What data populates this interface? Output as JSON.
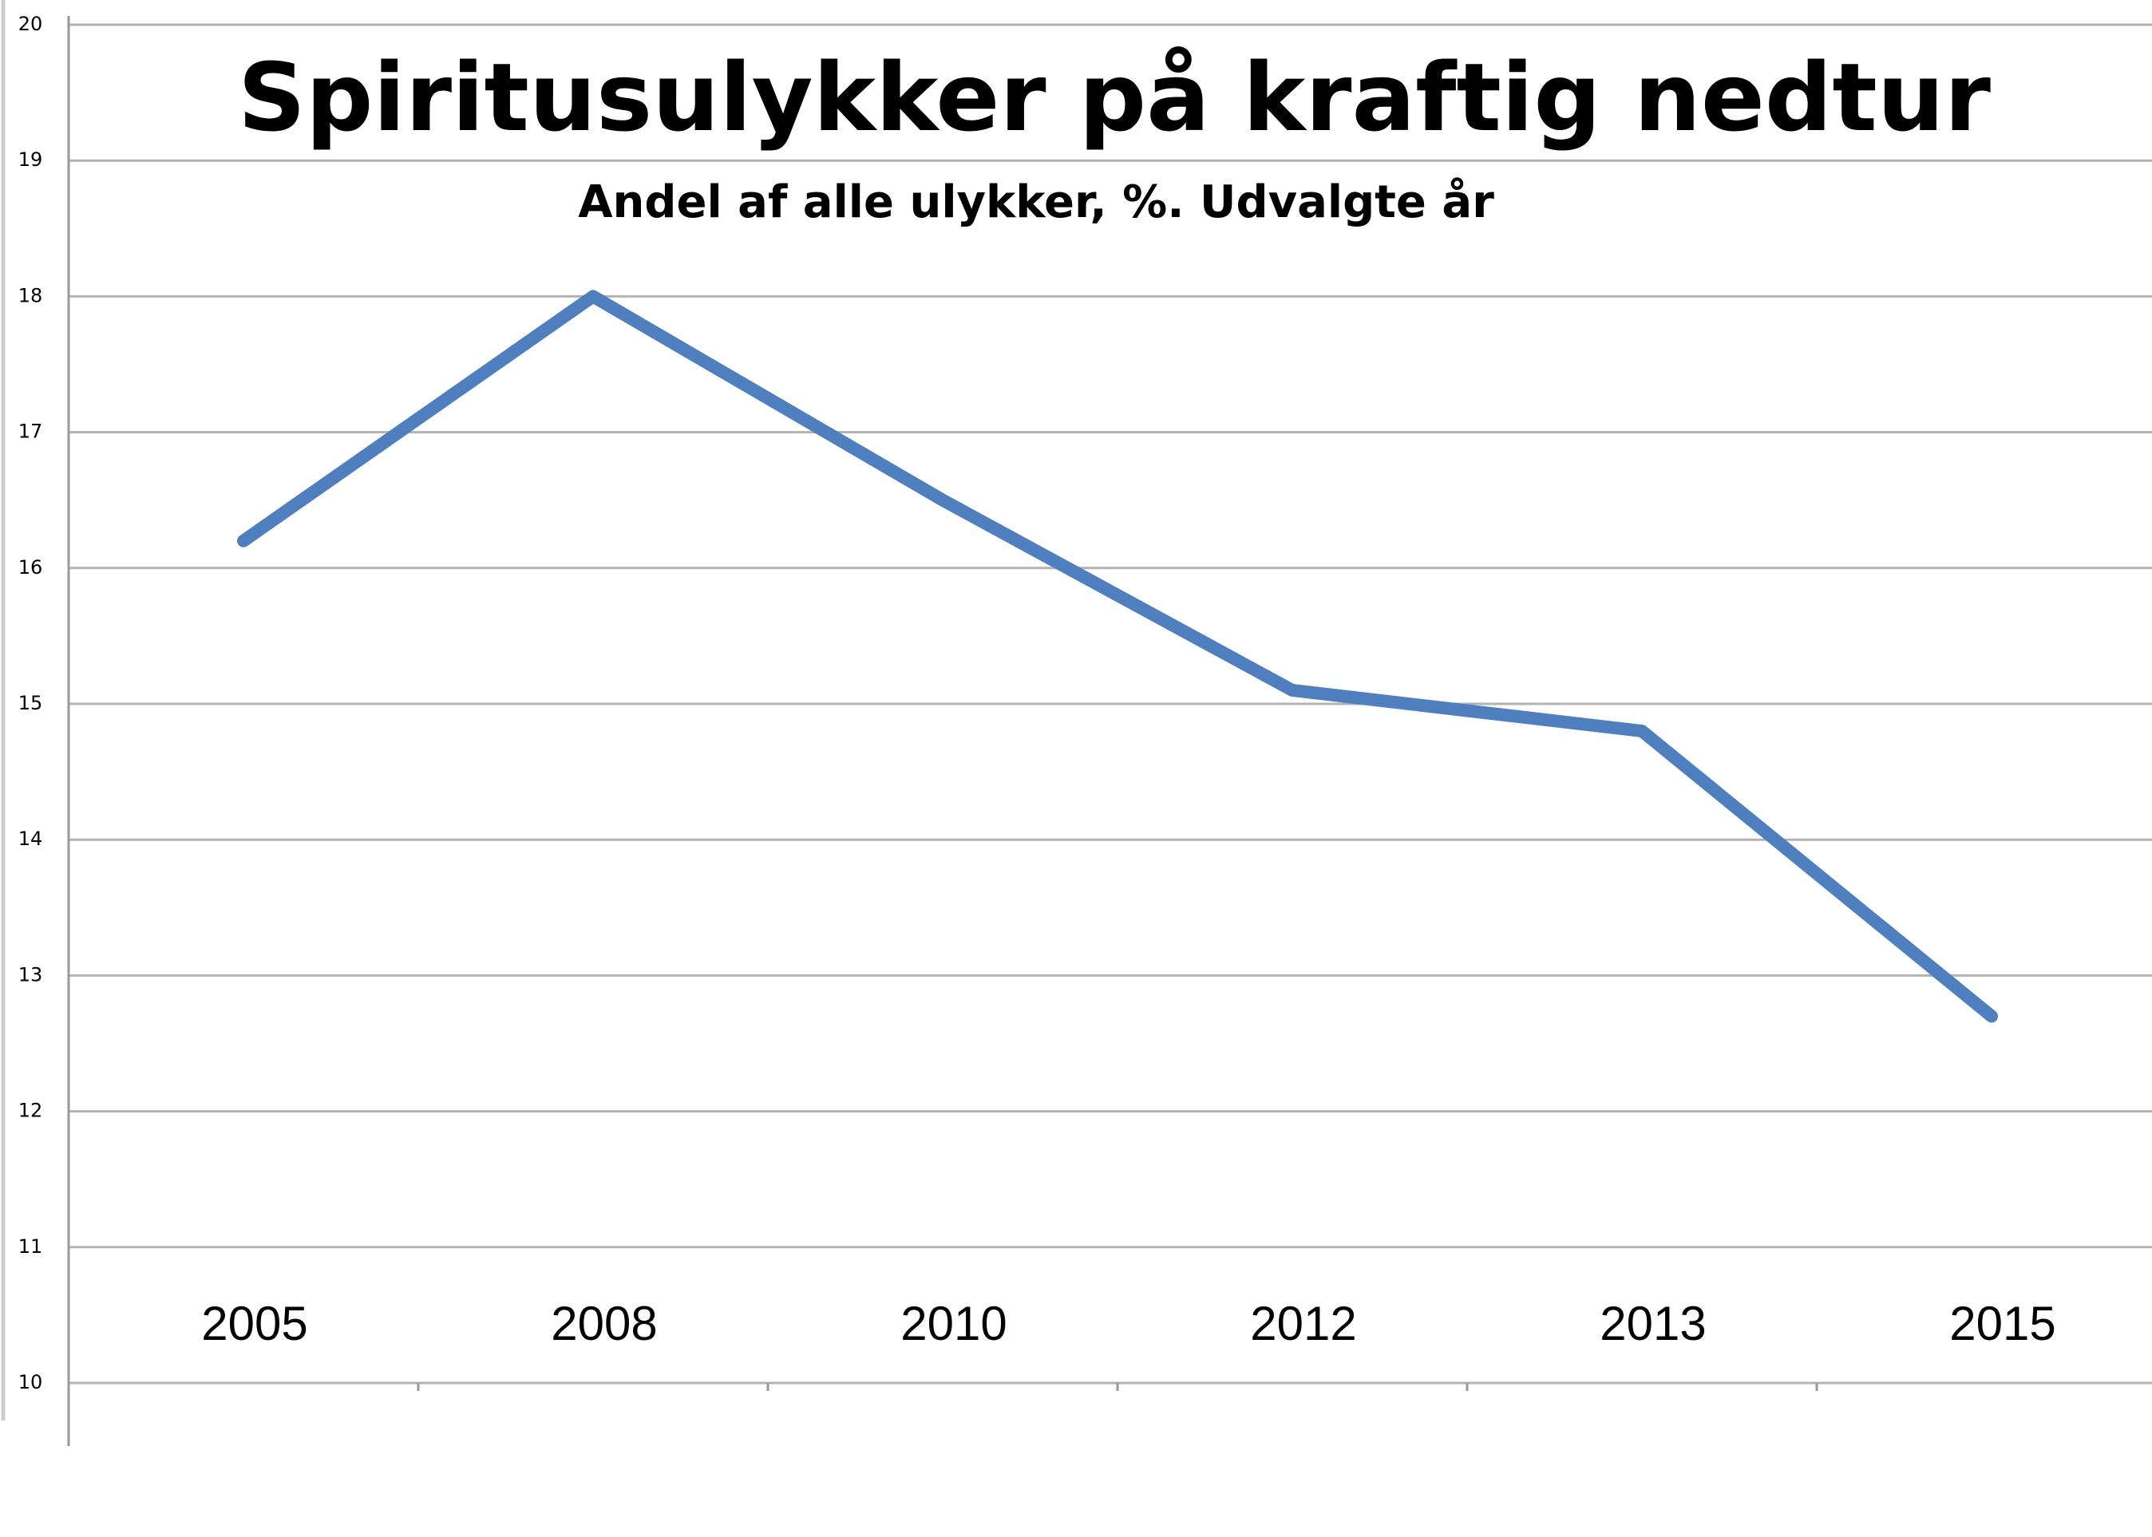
{
  "chart_data": {
    "type": "line",
    "title": "Spiritusulykker på kraftig nedtur",
    "subtitle": "Andel af alle ulykker, %. Udvalgte år",
    "categories": [
      "2005",
      "2008",
      "2010",
      "2012",
      "2013",
      "2015"
    ],
    "series": [
      {
        "color": "#4f7fbf",
        "values": [
          16.2,
          18.0,
          16.5,
          15.1,
          14.8,
          12.7
        ]
      }
    ],
    "ylim": [
      10,
      20
    ],
    "yticks": [
      10,
      11,
      12,
      13,
      14,
      15,
      16,
      17,
      18,
      19,
      20
    ],
    "grid": true
  }
}
